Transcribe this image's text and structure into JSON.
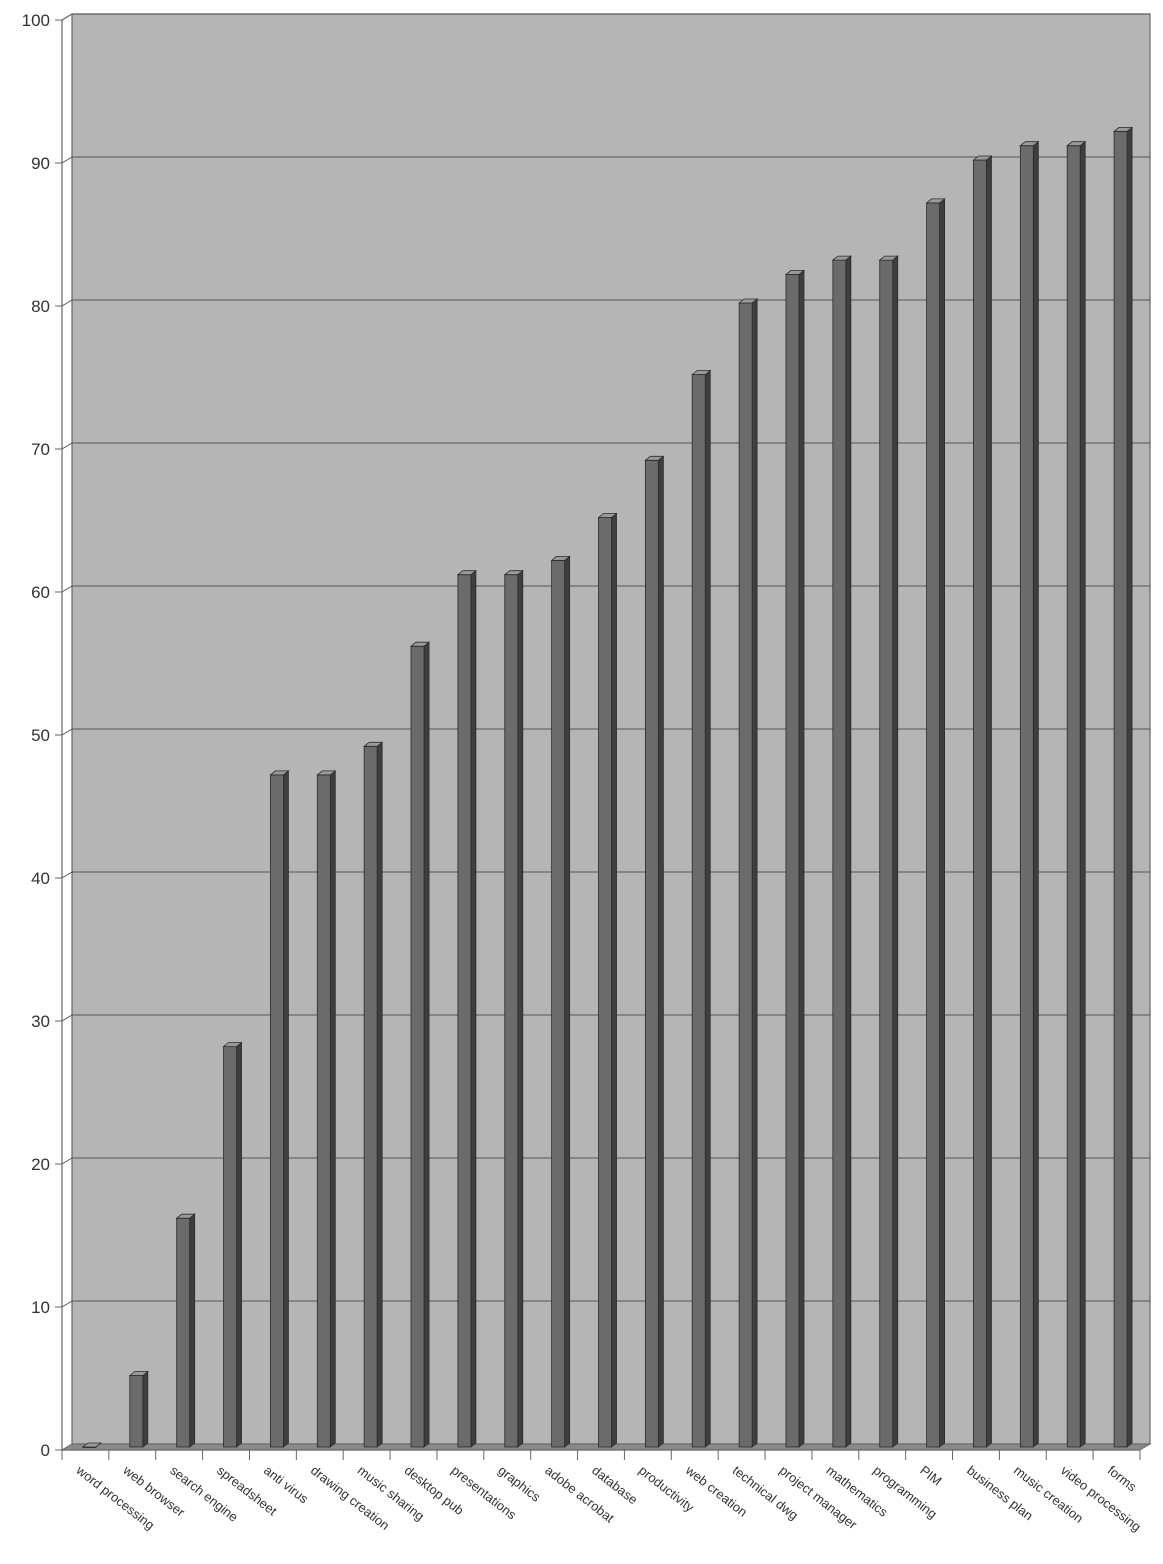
{
  "chart_data": {
    "type": "bar",
    "title": "",
    "xlabel": "",
    "ylabel": "",
    "ylim": [
      0,
      100
    ],
    "yticks": [
      0,
      10,
      20,
      30,
      40,
      50,
      60,
      70,
      80,
      90,
      100
    ],
    "grid": true,
    "style": "3d-columns",
    "categories": [
      "word processing",
      "web browser",
      "search engine",
      "spreadsheet",
      "anti virus",
      "drawing creation",
      "music sharing",
      "desktop pub",
      "presentations",
      "graphics",
      "adobe acrobat",
      "database",
      "productivity",
      "web creation",
      "technical dwg",
      "project manager",
      "mathematics",
      "programming",
      "PIM",
      "business plan",
      "music creation",
      "video processing",
      "forms"
    ],
    "values": [
      0,
      5,
      16,
      28,
      47,
      47,
      49,
      56,
      61,
      61,
      62,
      65,
      69,
      75,
      80,
      82,
      83,
      83,
      87,
      90,
      91,
      91,
      92
    ]
  },
  "colors": {
    "plot_bg": "#b5b5b5",
    "floor": "#8a8a8a",
    "bar_face": "#6b6b6b",
    "bar_side": "#3e3e3e",
    "bar_top": "#9a9a9a",
    "grid": "#555555",
    "axis": "#666666",
    "text": "#333333"
  }
}
